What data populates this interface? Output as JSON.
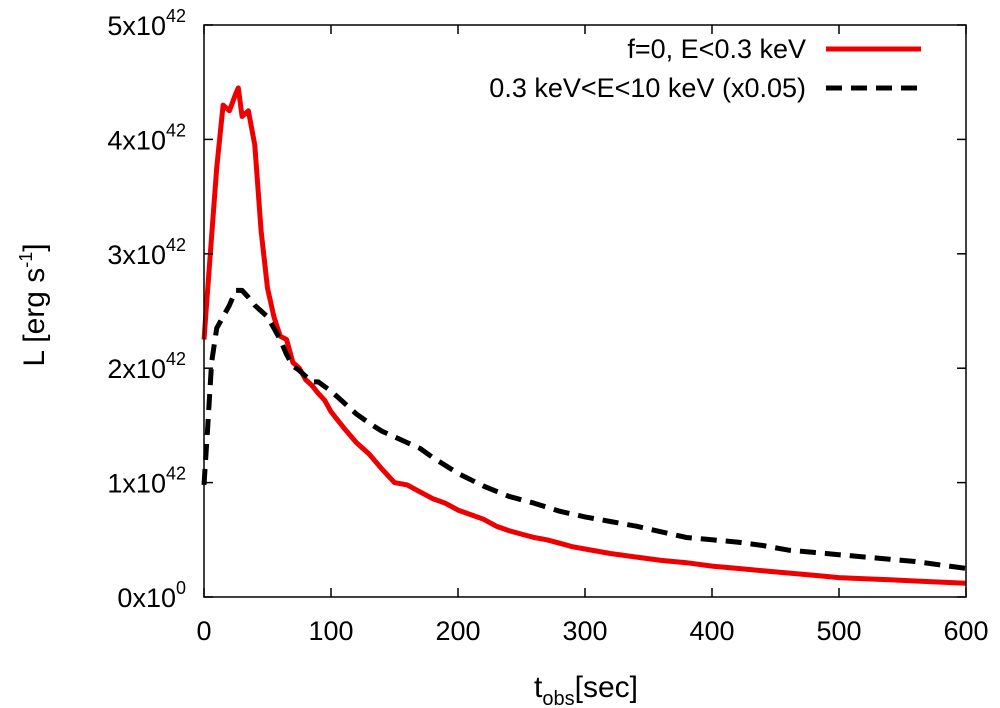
{
  "chart_data": {
    "type": "line",
    "title": "",
    "xlabel": {
      "base": "t",
      "sub": "obs",
      "rest": "[sec]"
    },
    "ylabel": {
      "main": "L [erg s",
      "sup": "-1",
      "close": "]"
    },
    "xlim": [
      0,
      600
    ],
    "ylim": [
      0,
      5e+42
    ],
    "x_ticks": [
      {
        "value": 0,
        "label": "0"
      },
      {
        "value": 100,
        "label": "100"
      },
      {
        "value": 200,
        "label": "200"
      },
      {
        "value": 300,
        "label": "300"
      },
      {
        "value": 400,
        "label": "400"
      },
      {
        "value": 500,
        "label": "500"
      },
      {
        "value": 600,
        "label": "600"
      }
    ],
    "y_ticks": [
      {
        "value": 0,
        "base": "0x10",
        "exp": "0"
      },
      {
        "value": 1e+42,
        "base": "1x10",
        "exp": "42"
      },
      {
        "value": 2e+42,
        "base": "2x10",
        "exp": "42"
      },
      {
        "value": 3e+42,
        "base": "3x10",
        "exp": "42"
      },
      {
        "value": 4e+42,
        "base": "4x10",
        "exp": "42"
      },
      {
        "value": 5e+42,
        "base": "5x10",
        "exp": "42"
      }
    ],
    "grid": false,
    "legend_position": "top-right",
    "series": [
      {
        "name": "f=0, E<0.3 keV",
        "color": "#ee0000",
        "dash": "solid",
        "x": [
          0,
          5,
          10,
          15,
          20,
          25,
          27,
          30,
          35,
          40,
          45,
          50,
          55,
          60,
          65,
          70,
          75,
          80,
          85,
          90,
          95,
          100,
          110,
          120,
          130,
          140,
          150,
          160,
          170,
          180,
          190,
          200,
          210,
          220,
          230,
          240,
          250,
          260,
          270,
          280,
          290,
          300,
          320,
          340,
          360,
          380,
          400,
          420,
          440,
          460,
          480,
          500,
          520,
          540,
          560,
          580,
          600
        ],
        "values": [
          2.25e+42,
          3e+42,
          3.75e+42,
          4.3e+42,
          4.25e+42,
          4.4e+42,
          4.45e+42,
          4.2e+42,
          4.25e+42,
          3.95e+42,
          3.2e+42,
          2.7e+42,
          2.45e+42,
          2.28e+42,
          2.25e+42,
          2.05e+42,
          2e+42,
          1.9e+42,
          1.85e+42,
          1.78e+42,
          1.72e+42,
          1.62e+42,
          1.48e+42,
          1.35e+42,
          1.25e+42,
          1.12e+42,
          1e+42,
          9.8e+41,
          9.2e+41,
          8.6e+41,
          8.2e+41,
          7.6e+41,
          7.2e+41,
          6.8e+41,
          6.2e+41,
          5.8e+41,
          5.5e+41,
          5.2e+41,
          5e+41,
          4.7e+41,
          4.4e+41,
          4.2e+41,
          3.8e+41,
          3.5e+41,
          3.2e+41,
          3e+41,
          2.7e+41,
          2.5e+41,
          2.3e+41,
          2.1e+41,
          1.9e+41,
          1.7e+41,
          1.6e+41,
          1.5e+41,
          1.4e+41,
          1.3e+41,
          1.2e+41
        ]
      },
      {
        "name": "0.3 keV<E<10 keV (x0.05)",
        "color": "#000000",
        "dash": "dashed",
        "x": [
          0,
          3,
          6,
          10,
          15,
          20,
          25,
          30,
          35,
          40,
          45,
          50,
          55,
          60,
          65,
          70,
          75,
          80,
          85,
          90,
          95,
          100,
          110,
          120,
          130,
          140,
          150,
          160,
          170,
          180,
          190,
          200,
          220,
          240,
          260,
          280,
          300,
          320,
          340,
          360,
          380,
          400,
          420,
          440,
          460,
          480,
          500,
          520,
          540,
          560,
          580,
          600
        ],
        "values": [
          9.8e+41,
          1.5e+42,
          2.05e+42,
          2.35e+42,
          2.45e+42,
          2.55e+42,
          2.68e+42,
          2.68e+42,
          2.62e+42,
          2.55e+42,
          2.5e+42,
          2.45e+42,
          2.35e+42,
          2.25e+42,
          2.12e+42,
          2.02e+42,
          1.98e+42,
          1.93e+42,
          1.88e+42,
          1.88e+42,
          1.84e+42,
          1.8e+42,
          1.7e+42,
          1.6e+42,
          1.52e+42,
          1.45e+42,
          1.4e+42,
          1.35e+42,
          1.3e+42,
          1.22e+42,
          1.15e+42,
          1.08e+42,
          9.7e+41,
          8.8e+41,
          8.2e+41,
          7.5e+41,
          7e+41,
          6.6e+41,
          6.2e+41,
          5.7e+41,
          5.2e+41,
          5e+41,
          4.8e+41,
          4.5e+41,
          4.1e+41,
          3.9e+41,
          3.7e+41,
          3.5e+41,
          3.3e+41,
          3.1e+41,
          2.8e+41,
          2.5e+41
        ]
      }
    ]
  }
}
